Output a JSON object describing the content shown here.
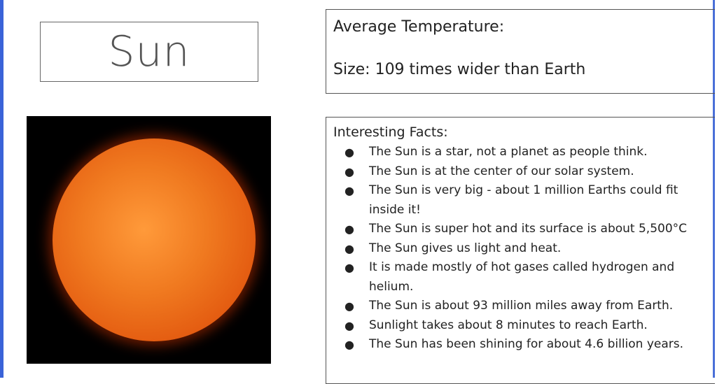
{
  "title": "Sun",
  "image": {
    "alt": "sun-photo"
  },
  "info": {
    "temperature_label": "Average Temperature:",
    "size_label": "Size: 109 times wider than Earth"
  },
  "facts": {
    "heading": "Interesting Facts:",
    "items": [
      "The Sun is a star, not a planet as people think.",
      "The Sun is at the center of our solar system.",
      "The Sun is very big - about 1 million Earths could fit inside it!",
      "The Sun is super hot and its surface is about 5,500°C",
      "The Sun gives us light and heat.",
      "It is made mostly of hot gases called hydrogen and helium.",
      "The Sun is about 93 million miles away from Earth.",
      "Sunlight takes about 8 minutes to reach Earth.",
      "The Sun has been shining for about 4.6 billion years."
    ]
  },
  "colors": {
    "accent_bar": "#3a63d8",
    "sun": "#f07a20"
  }
}
